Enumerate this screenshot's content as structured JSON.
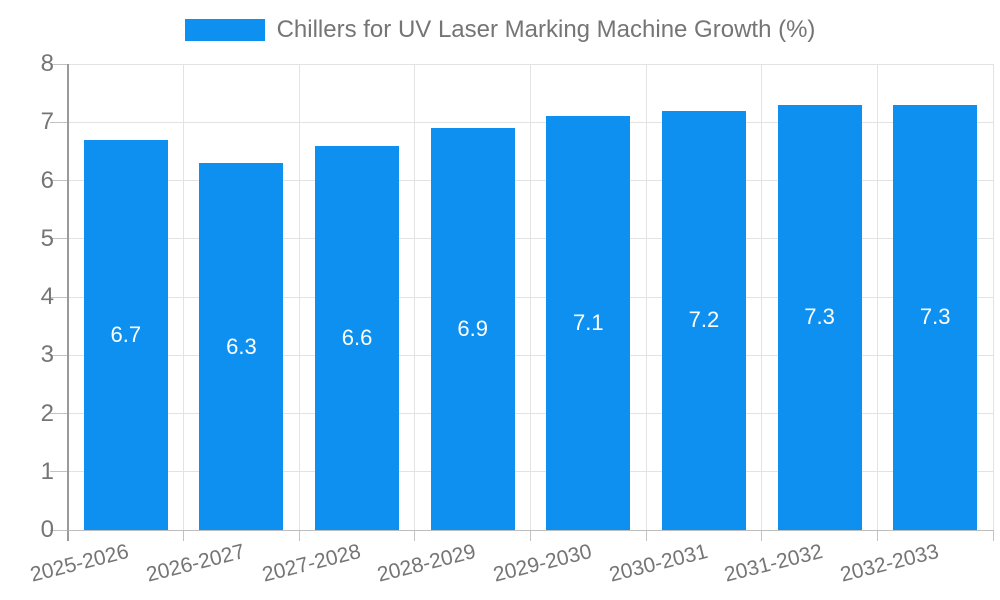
{
  "legend": {
    "label": "Chillers for UV Laser Marking Machine Growth (%)",
    "swatch_color": "#0e90f0"
  },
  "chart_data": {
    "type": "bar",
    "title": "Chillers for UV Laser Marking Machine Growth (%)",
    "categories": [
      "2025-2026",
      "2026-2027",
      "2027-2028",
      "2028-2029",
      "2029-2030",
      "2030-2031",
      "2031-2032",
      "2032-2033"
    ],
    "values": [
      6.7,
      6.3,
      6.6,
      6.9,
      7.1,
      7.2,
      7.3,
      7.3
    ],
    "xlabel": "",
    "ylabel": "",
    "ylim": [
      0,
      8
    ],
    "yticks": [
      0,
      1,
      2,
      3,
      4,
      5,
      6,
      7,
      8
    ],
    "grid": true,
    "legend_position": "top",
    "bar_color": "#0e90f0",
    "value_label_color": "#ffffff",
    "axis_text_color": "#757575",
    "gridline_color": "#e3e3e3"
  }
}
